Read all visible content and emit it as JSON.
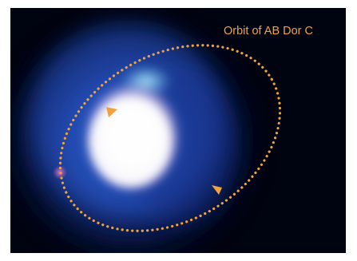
{
  "image": {
    "label": "Orbit of AB Dor C",
    "colors": {
      "background": "#000410",
      "glow_outer": "#1a3a9a",
      "glow_inner": "#3f7fe8",
      "core": "#ffffff",
      "core_tint": "#f2d8f2",
      "cyan_spot": "#7fe6ff",
      "magenta_spot": "#d45fa6",
      "orbit": "#f0a23e"
    },
    "orbit_direction": "counter-clockwise"
  }
}
